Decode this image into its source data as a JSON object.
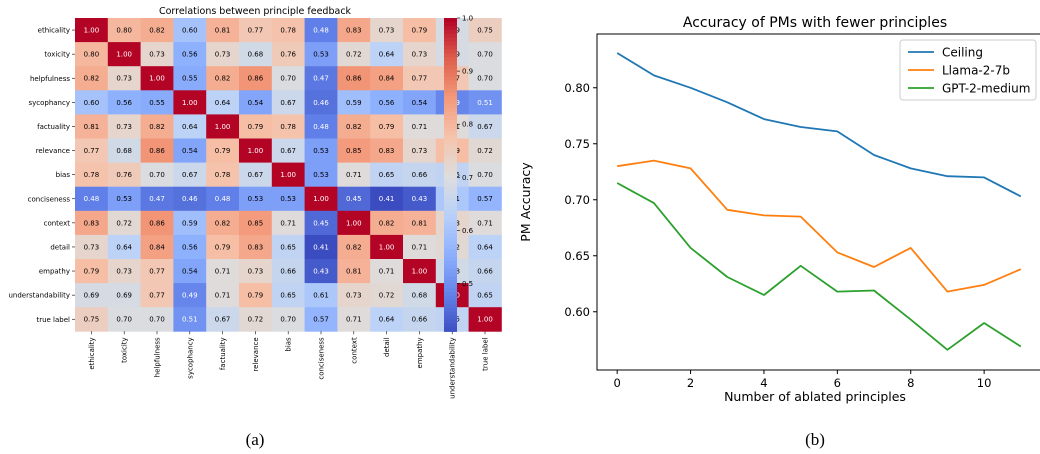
{
  "chart_data": [
    {
      "type": "heatmap",
      "title": "Correlations between principle feedback",
      "caption": "(a)",
      "labels": [
        "ethicality",
        "toxicity",
        "helpfulness",
        "sycophancy",
        "factuality",
        "relevance",
        "bias",
        "conciseness",
        "context",
        "detail",
        "empathy",
        "understandability",
        "true label"
      ],
      "matrix": [
        [
          1.0,
          0.8,
          0.82,
          0.6,
          0.81,
          0.77,
          0.78,
          0.48,
          0.83,
          0.73,
          0.79,
          0.69,
          0.75
        ],
        [
          0.8,
          1.0,
          0.73,
          0.56,
          0.73,
          0.68,
          0.76,
          0.53,
          0.72,
          0.64,
          0.73,
          0.69,
          0.7
        ],
        [
          0.82,
          0.73,
          1.0,
          0.55,
          0.82,
          0.86,
          0.7,
          0.47,
          0.86,
          0.84,
          0.77,
          0.77,
          0.7
        ],
        [
          0.6,
          0.56,
          0.55,
          1.0,
          0.64,
          0.54,
          0.67,
          0.46,
          0.59,
          0.56,
          0.54,
          0.49,
          0.51
        ],
        [
          0.81,
          0.73,
          0.82,
          0.64,
          1.0,
          0.79,
          0.78,
          0.48,
          0.82,
          0.79,
          0.71,
          0.71,
          0.67
        ],
        [
          0.77,
          0.68,
          0.86,
          0.54,
          0.79,
          1.0,
          0.67,
          0.53,
          0.85,
          0.83,
          0.73,
          0.79,
          0.72
        ],
        [
          0.78,
          0.76,
          0.7,
          0.67,
          0.78,
          0.67,
          1.0,
          0.53,
          0.71,
          0.65,
          0.66,
          0.65,
          0.7
        ],
        [
          0.48,
          0.53,
          0.47,
          0.46,
          0.48,
          0.53,
          0.53,
          1.0,
          0.45,
          0.41,
          0.43,
          0.61,
          0.57
        ],
        [
          0.83,
          0.72,
          0.86,
          0.59,
          0.82,
          0.85,
          0.71,
          0.45,
          1.0,
          0.82,
          0.81,
          0.73,
          0.71
        ],
        [
          0.73,
          0.64,
          0.84,
          0.56,
          0.79,
          0.83,
          0.65,
          0.41,
          0.82,
          1.0,
          0.71,
          0.72,
          0.64
        ],
        [
          0.79,
          0.73,
          0.77,
          0.54,
          0.71,
          0.73,
          0.66,
          0.43,
          0.81,
          0.71,
          1.0,
          0.68,
          0.66
        ],
        [
          0.69,
          0.69,
          0.77,
          0.49,
          0.71,
          0.79,
          0.65,
          0.61,
          0.73,
          0.72,
          0.68,
          1.0,
          0.65
        ],
        [
          0.75,
          0.7,
          0.7,
          0.51,
          0.67,
          0.72,
          0.7,
          0.57,
          0.71,
          0.64,
          0.66,
          0.65,
          1.0
        ]
      ],
      "colormap": "coolwarm",
      "vmin": 0.41,
      "vmax": 1.0,
      "colorbar_ticks": [
        "0.5",
        "0.6",
        "0.7",
        "0.8",
        "0.9",
        "1.0"
      ],
      "colorbar_tick_values": [
        0.5,
        0.6,
        0.7,
        0.8,
        0.9,
        1.0
      ]
    },
    {
      "type": "line",
      "title": "Accuracy of PMs with fewer principles",
      "caption": "(b)",
      "xlabel": "Number of ablated principles",
      "ylabel": "PM Accuracy",
      "xlim": [
        -0.55,
        11.55
      ],
      "ylim": [
        0.548,
        0.848
      ],
      "xticks": [
        0,
        2,
        4,
        6,
        8,
        10
      ],
      "yticks": [
        0.6,
        0.65,
        0.7,
        0.75,
        0.8
      ],
      "ytick_labels": [
        "0.60",
        "0.65",
        "0.70",
        "0.75",
        "0.80"
      ],
      "legend_position": "top-right",
      "x": [
        0,
        1,
        2,
        3,
        4,
        5,
        6,
        7,
        8,
        9,
        10,
        11
      ],
      "series": [
        {
          "name": "Ceiling",
          "color": "#1f77b4",
          "values": [
            0.831,
            0.811,
            0.8,
            0.787,
            0.772,
            0.765,
            0.761,
            0.74,
            0.728,
            0.721,
            0.72,
            0.703
          ]
        },
        {
          "name": "Llama-2-7b",
          "color": "#ff7f0e",
          "values": [
            0.73,
            0.735,
            0.728,
            0.691,
            0.686,
            0.685,
            0.653,
            0.64,
            0.657,
            0.618,
            0.624,
            0.638
          ]
        },
        {
          "name": "GPT-2-medium",
          "color": "#2ca02c",
          "values": [
            0.715,
            0.697,
            0.657,
            0.631,
            0.615,
            0.641,
            0.618,
            0.619,
            0.593,
            0.566,
            0.59,
            0.569
          ]
        }
      ]
    }
  ]
}
